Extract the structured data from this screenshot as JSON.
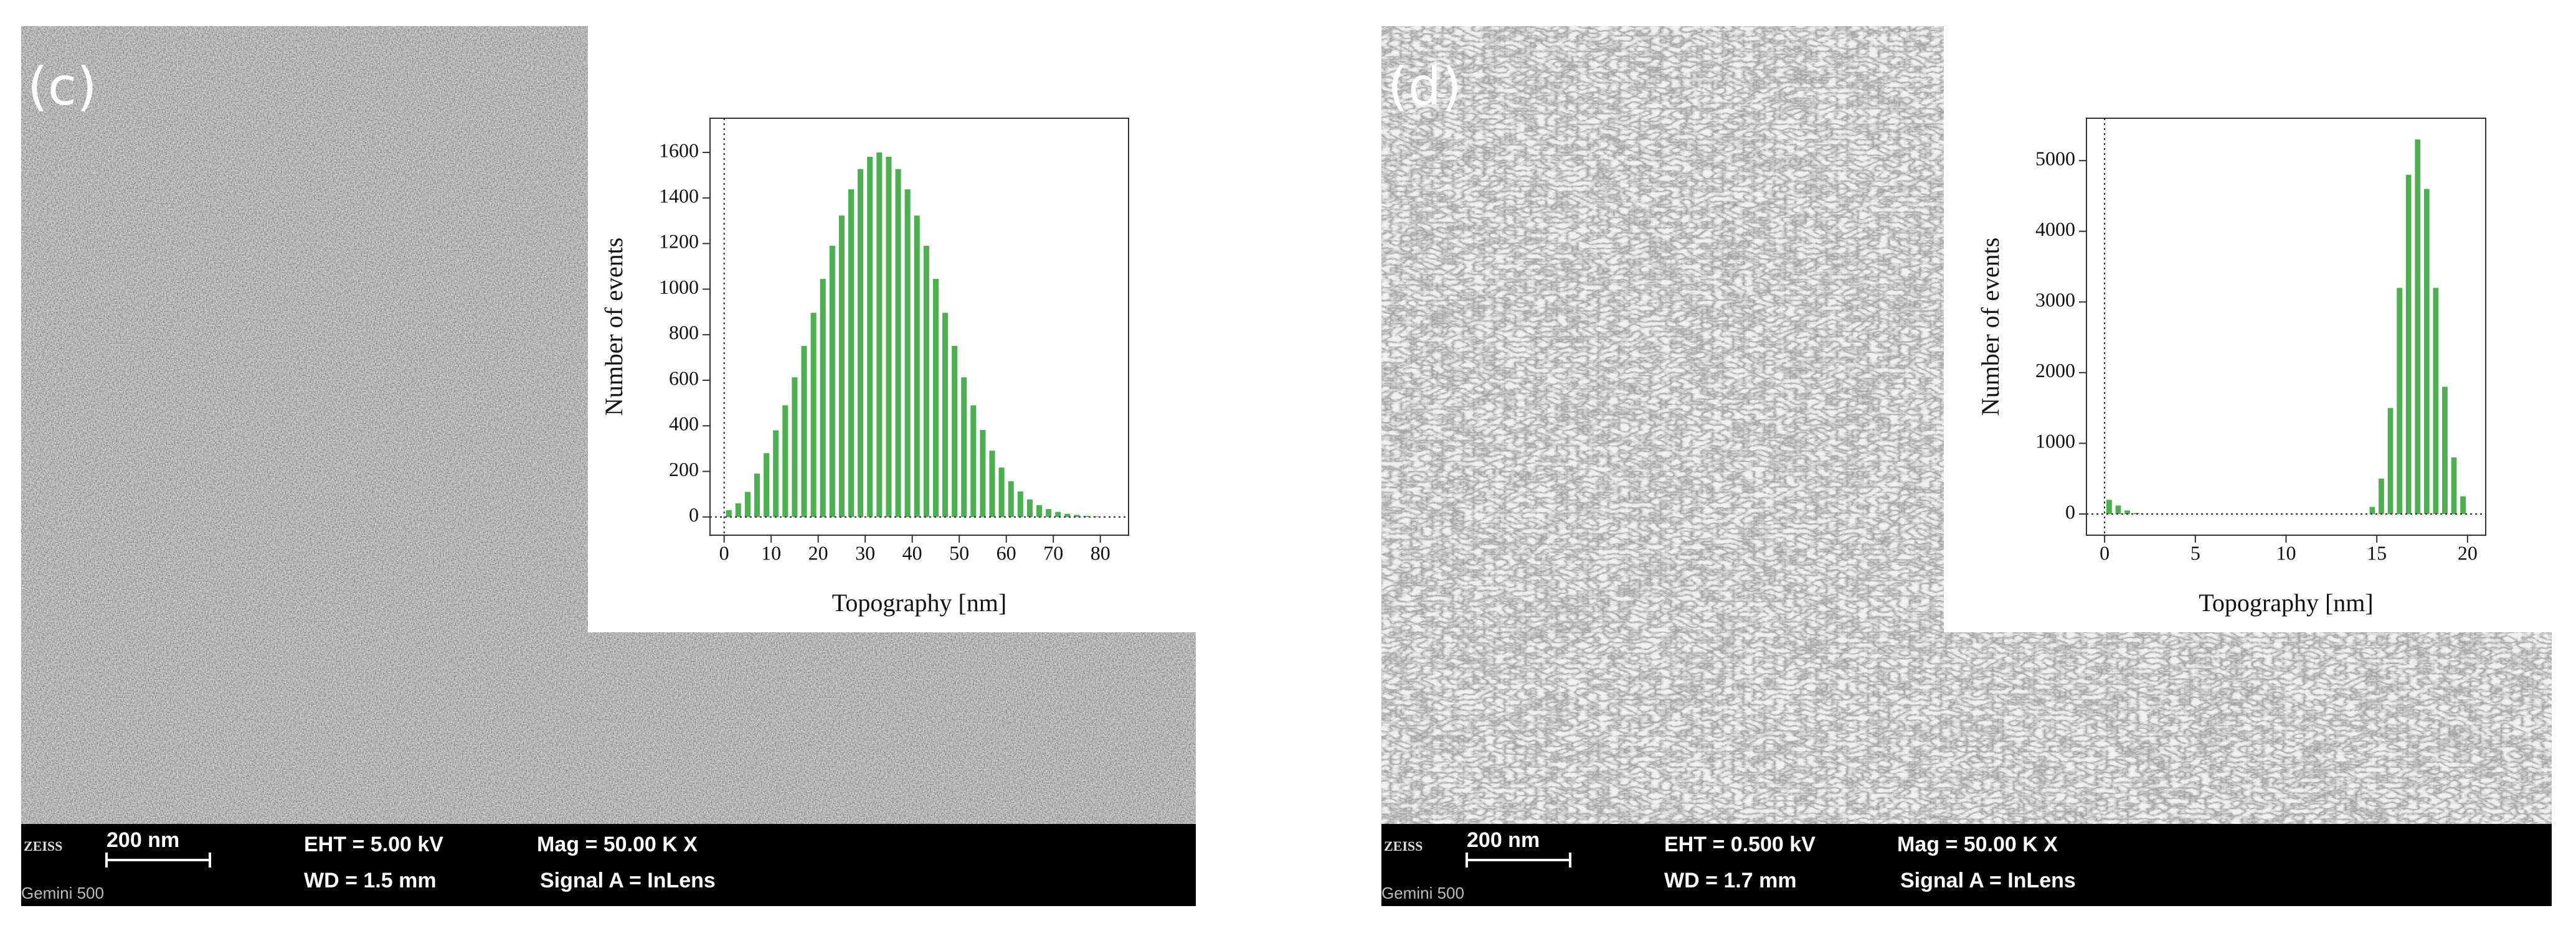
{
  "panels": [
    {
      "label": "(c)",
      "logo": "ZEISS",
      "scale": "200 nm",
      "eht": "EHT =  5.00 kV",
      "wd": "WD =  1.5 mm",
      "mag": "Mag =   50.00 K X",
      "signal": "Signal A = InLens",
      "model": "Gemini 500"
    },
    {
      "label": "(d)",
      "logo": "ZEISS",
      "scale": "200 nm",
      "eht": "EHT = 0.500 kV",
      "wd": "WD =  1.7 mm",
      "mag": "Mag =   50.00 K X",
      "signal": "Signal A = InLens",
      "model": "Gemini 500"
    }
  ],
  "chart_data": [
    {
      "type": "histogram",
      "xlabel": "Topography [nm]",
      "ylabel": "Number of events",
      "color": "#4caf50",
      "bins": [
        0,
        2,
        4,
        6,
        8,
        10,
        12,
        14,
        16,
        18,
        20,
        22,
        24,
        26,
        28,
        30,
        32,
        34,
        36,
        38,
        40,
        42,
        44,
        46,
        48,
        50,
        52,
        54,
        56,
        58,
        60,
        62,
        64,
        66,
        68,
        70,
        72,
        74,
        76,
        78,
        80
      ],
      "values": [
        30,
        60,
        110,
        190,
        280,
        380,
        490,
        613,
        751,
        896,
        1045,
        1190,
        1323,
        1438,
        1527,
        1581,
        1600,
        1581,
        1527,
        1438,
        1323,
        1190,
        1045,
        896,
        751,
        613,
        490,
        382,
        291,
        217,
        157,
        112,
        77,
        52,
        35,
        22,
        14,
        9,
        5,
        3
      ],
      "xlim": [
        -3,
        86
      ],
      "xticks": [
        0,
        10,
        20,
        30,
        40,
        50,
        60,
        70,
        80
      ],
      "ylim": [
        -80,
        1750
      ],
      "yticks": [
        0,
        200,
        400,
        600,
        800,
        1000,
        1200,
        1400,
        1600
      ]
    },
    {
      "type": "histogram",
      "xlabel": "Topography [nm]",
      "ylabel": "Number of events",
      "color": "#4caf50",
      "bins": [
        0,
        0.5,
        1,
        1.5,
        2,
        2.5,
        3,
        3.5,
        4,
        4.5,
        5,
        5.5,
        6,
        6.5,
        7,
        7.5,
        8,
        8.5,
        9,
        9.5,
        10,
        10.5,
        11,
        11.5,
        12,
        12.5,
        13,
        13.5,
        14,
        14.5,
        15,
        15.5,
        16,
        16.5,
        17,
        17.5,
        18,
        18.5,
        19,
        19.5,
        20
      ],
      "values": [
        200,
        120,
        50,
        15,
        0,
        0,
        0,
        0,
        0,
        0,
        0,
        0,
        0,
        0,
        0,
        0,
        0,
        0,
        0,
        0,
        0,
        0,
        0,
        0,
        0,
        0,
        0,
        0,
        0,
        100,
        500,
        1500,
        3200,
        4800,
        5300,
        4600,
        3200,
        1800,
        800,
        250
      ],
      "xlim": [
        -1,
        21
      ],
      "xticks": [
        0,
        5,
        10,
        15,
        20
      ],
      "ylim": [
        -300,
        5600
      ],
      "yticks": [
        0,
        1000,
        2000,
        3000,
        4000,
        5000
      ]
    }
  ]
}
